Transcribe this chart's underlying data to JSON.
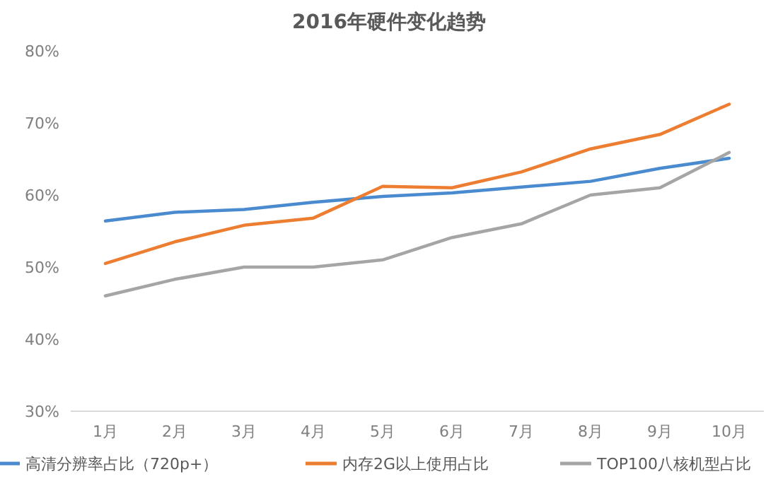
{
  "chart_data": {
    "type": "line",
    "title": "2016年硬件变化趋势",
    "categories": [
      "1月",
      "2月",
      "3月",
      "4月",
      "5月",
      "6月",
      "7月",
      "8月",
      "9月",
      "10月"
    ],
    "series": [
      {
        "name": "高清分辨率占比（720p+）",
        "color": "#4a8bd0",
        "values": [
          56.4,
          57.6,
          58,
          59,
          59.8,
          60.3,
          61.1,
          61.9,
          63.7,
          65.1
        ]
      },
      {
        "name": "内存2G以上使用占比",
        "color": "#ed7d31",
        "values": [
          50.5,
          53.5,
          55.8,
          56.8,
          61.2,
          61,
          63.2,
          66.4,
          68.4,
          72.6
        ]
      },
      {
        "name": "TOP100八核机型占比",
        "color": "#a5a5a5",
        "values": [
          46,
          48.3,
          50,
          50,
          51,
          54.1,
          56,
          60,
          61,
          65.9
        ]
      }
    ],
    "ylim": [
      30,
      80
    ],
    "yticks": [
      {
        "value": 30,
        "label": "30%"
      },
      {
        "value": 40,
        "label": "40%"
      },
      {
        "value": 50,
        "label": "50%"
      },
      {
        "value": 60,
        "label": "60%"
      },
      {
        "value": 70,
        "label": "70%"
      },
      {
        "value": 80,
        "label": "80%"
      }
    ],
    "grid": false,
    "legend": "bottom",
    "marker": "none",
    "line_style": "solid"
  }
}
